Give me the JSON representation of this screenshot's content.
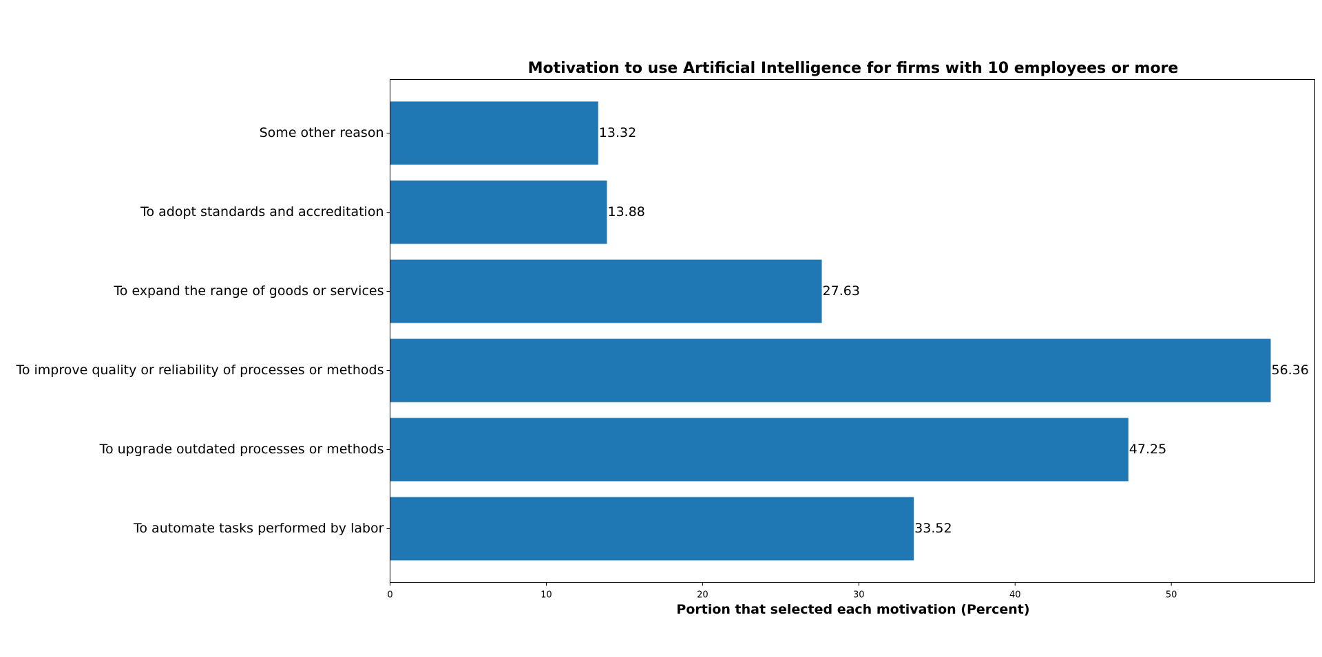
{
  "chart_data": {
    "type": "bar",
    "orientation": "horizontal",
    "title": "Motivation to use Artificial Intelligence for firms with 10 employees or more",
    "xlabel": "Portion that selected each motivation (Percent)",
    "ylabel": "",
    "categories": [
      "To automate tasks performed by labor",
      "To upgrade outdated processes or methods",
      "To improve quality or reliability of processes or methods",
      "To expand the range of goods or services",
      "To adopt standards and accreditation",
      "Some other reason"
    ],
    "values": [
      33.52,
      47.25,
      56.36,
      27.63,
      13.88,
      13.32
    ],
    "value_labels": [
      "33.52",
      "47.25",
      "56.36",
      "27.63",
      "13.88",
      "13.32"
    ],
    "xticks": [
      0,
      10,
      20,
      30,
      40,
      50
    ],
    "xtick_labels": [
      "0",
      "10",
      "20",
      "30",
      "40",
      "50"
    ],
    "xlim": [
      0,
      59.18
    ],
    "grid": false,
    "legend": "none",
    "colors": {
      "bar": "#1f77b4",
      "axis": "#000000"
    }
  }
}
